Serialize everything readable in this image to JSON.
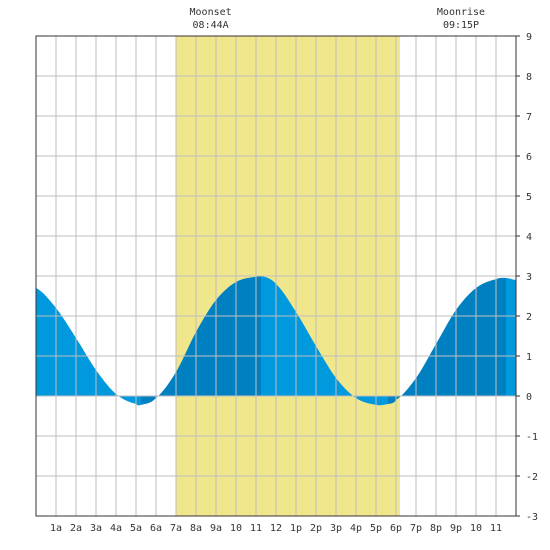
{
  "chart_data": {
    "type": "area",
    "title": "",
    "xlabel": "",
    "ylabel": "",
    "ylim": [
      -3,
      9
    ],
    "y_ticks": [
      -3,
      -2,
      -1,
      0,
      1,
      2,
      3,
      4,
      5,
      6,
      7,
      8,
      9
    ],
    "x_range_hours": [
      0,
      24
    ],
    "x_tick_hours": [
      1,
      2,
      3,
      4,
      5,
      6,
      7,
      8,
      9,
      10,
      11,
      12,
      13,
      14,
      15,
      16,
      17,
      18,
      19,
      20,
      21,
      22,
      23
    ],
    "x_tick_labels": [
      "1a",
      "2a",
      "3a",
      "4a",
      "5a",
      "6a",
      "7a",
      "8a",
      "9a",
      "10",
      "11",
      "12",
      "1p",
      "2p",
      "3p",
      "4p",
      "5p",
      "6p",
      "7p",
      "8p",
      "9p",
      "10",
      "11"
    ],
    "grid": true,
    "daylight": {
      "start_hour": 7.0,
      "end_hour": 18.2
    },
    "series": [
      {
        "x": [
          0,
          1,
          2,
          3,
          4,
          5,
          5.25,
          6,
          7,
          8,
          9,
          10,
          11,
          11.25,
          12,
          13,
          14,
          15,
          16,
          17,
          17.6,
          18,
          19,
          20,
          21,
          22,
          23,
          23.5,
          24
        ],
        "values": [
          2.7,
          2.2,
          1.45,
          0.65,
          0.05,
          -0.2,
          -0.22,
          -0.05,
          0.6,
          1.6,
          2.4,
          2.85,
          2.98,
          3.0,
          2.8,
          2.1,
          1.25,
          0.45,
          -0.05,
          -0.22,
          -0.2,
          -0.1,
          0.45,
          1.3,
          2.15,
          2.7,
          2.92,
          2.95,
          2.9
        ]
      }
    ],
    "extrema_hours": [
      5.25,
      11.25,
      17.6,
      23.5
    ],
    "annotations": [
      {
        "label": "Moonset",
        "time": "08:44A",
        "hour": 8.73
      },
      {
        "label": "Moonrise",
        "time": "09:15P",
        "hour": 21.25
      }
    ],
    "colors": {
      "daylight": "#f0e68c",
      "tide_rising": "#0080c0",
      "tide_falling": "#0099dd",
      "grid": "#bfbfbf",
      "frame": "#333333"
    }
  }
}
